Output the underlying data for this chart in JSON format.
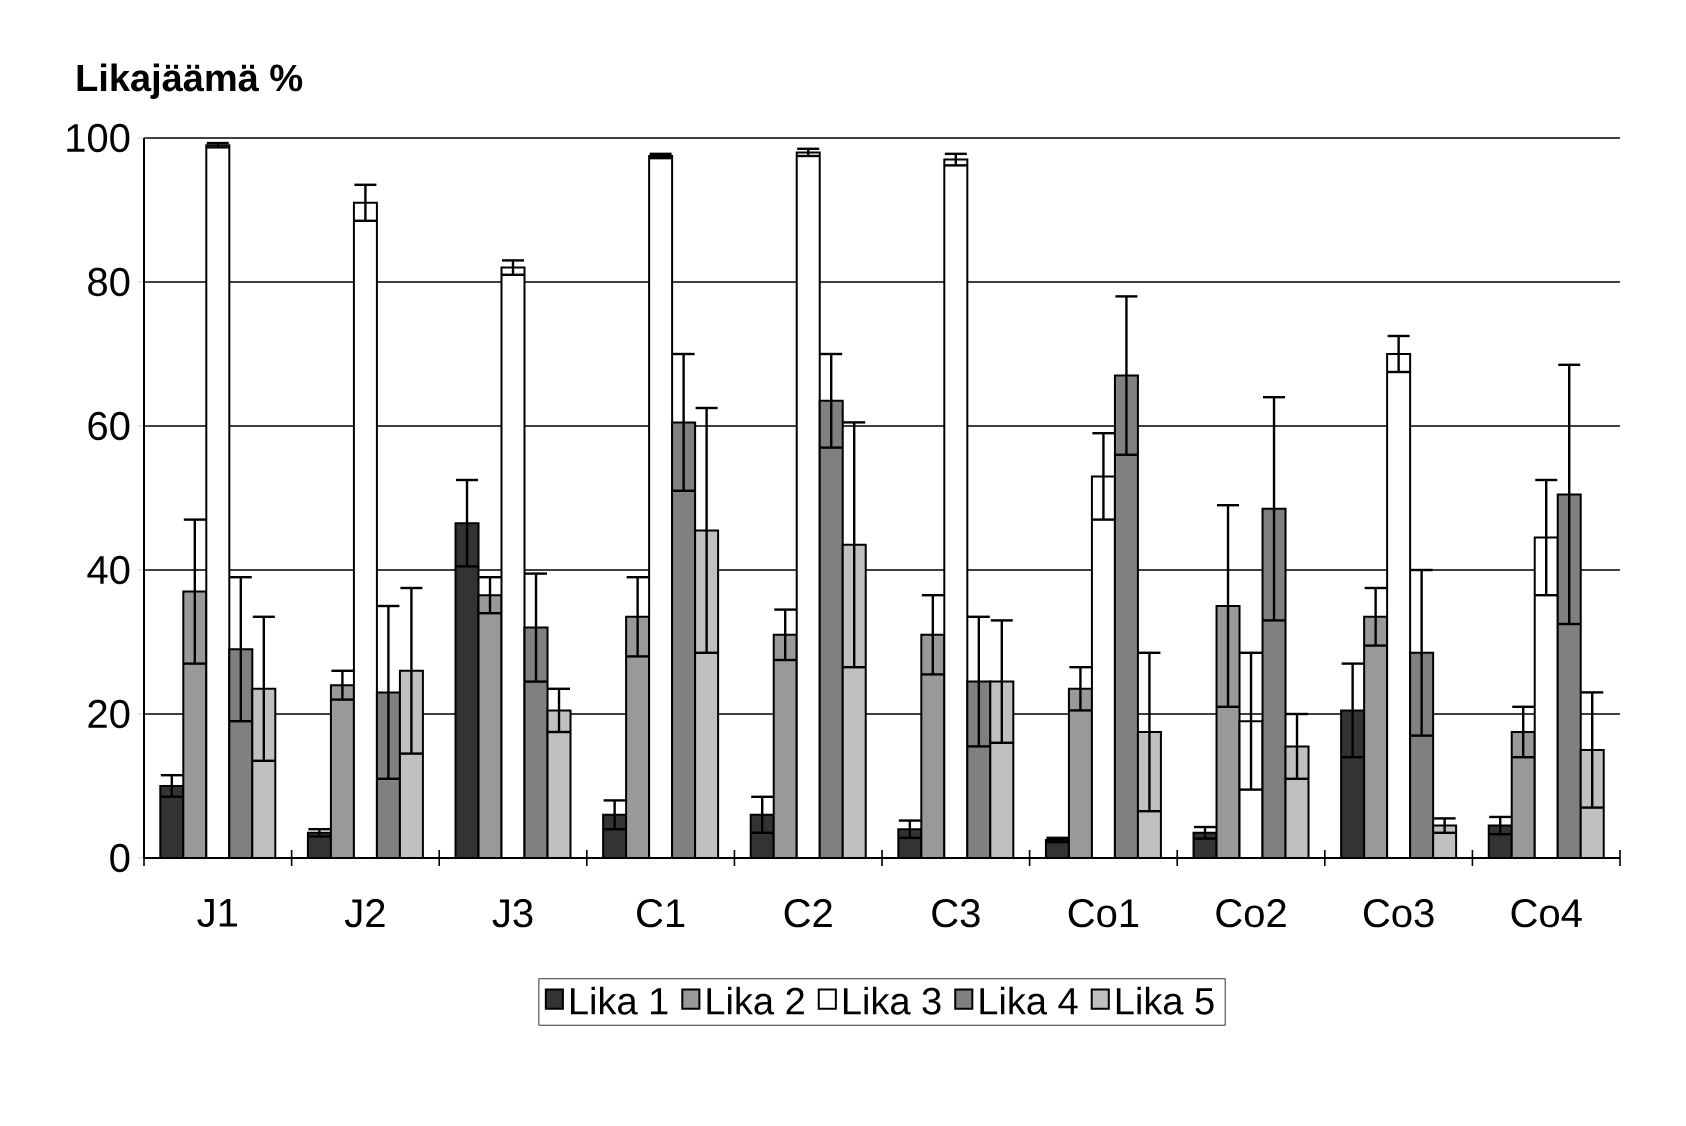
{
  "chart_data": {
    "type": "bar",
    "title": "Likajäämä %",
    "categories": [
      "J1",
      "J2",
      "J3",
      "C1",
      "C2",
      "C3",
      "Co1",
      "Co2",
      "Co3",
      "Co4"
    ],
    "series": [
      {
        "name": "Lika 1",
        "color": "#333333",
        "values": [
          10,
          3.5,
          46.5,
          6,
          6,
          4,
          2.5,
          3.5,
          20.5,
          4.5
        ],
        "errors": [
          1.5,
          0.5,
          6,
          2,
          2.5,
          1.2,
          0.3,
          0.8,
          6.5,
          1.2
        ]
      },
      {
        "name": "Lika 2",
        "color": "#999999",
        "values": [
          37,
          24,
          36.5,
          33.5,
          31,
          31,
          23.5,
          35,
          33.5,
          17.5
        ],
        "errors": [
          10,
          2,
          2.5,
          5.5,
          3.5,
          5.5,
          3,
          14,
          4,
          3.5
        ]
      },
      {
        "name": "Lika 3",
        "color": "#ffffff",
        "values": [
          99,
          91,
          82,
          97.5,
          98,
          97,
          53,
          19,
          70,
          44.5
        ],
        "errors": [
          0.3,
          2.5,
          1,
          0.3,
          0.5,
          0.8,
          6,
          9.5,
          2.5,
          8
        ]
      },
      {
        "name": "Lika 4",
        "color": "#808080",
        "values": [
          29,
          23,
          32,
          60.5,
          63.5,
          24.5,
          67,
          48.5,
          28.5,
          50.5
        ],
        "errors": [
          10,
          12,
          7.5,
          9.5,
          6.5,
          9,
          11,
          15.5,
          11.5,
          18
        ]
      },
      {
        "name": "Lika 5",
        "color": "#c0c0c0",
        "values": [
          23.5,
          26,
          20.5,
          45.5,
          43.5,
          24.5,
          17.5,
          15.5,
          4.5,
          15
        ],
        "errors": [
          10,
          11.5,
          3,
          17,
          17,
          8.5,
          11,
          4.5,
          1,
          8
        ]
      }
    ],
    "ylim": [
      0,
      100
    ],
    "yticks": [
      0,
      20,
      40,
      60,
      80,
      100
    ],
    "grid": "y",
    "legend": "bottom"
  }
}
